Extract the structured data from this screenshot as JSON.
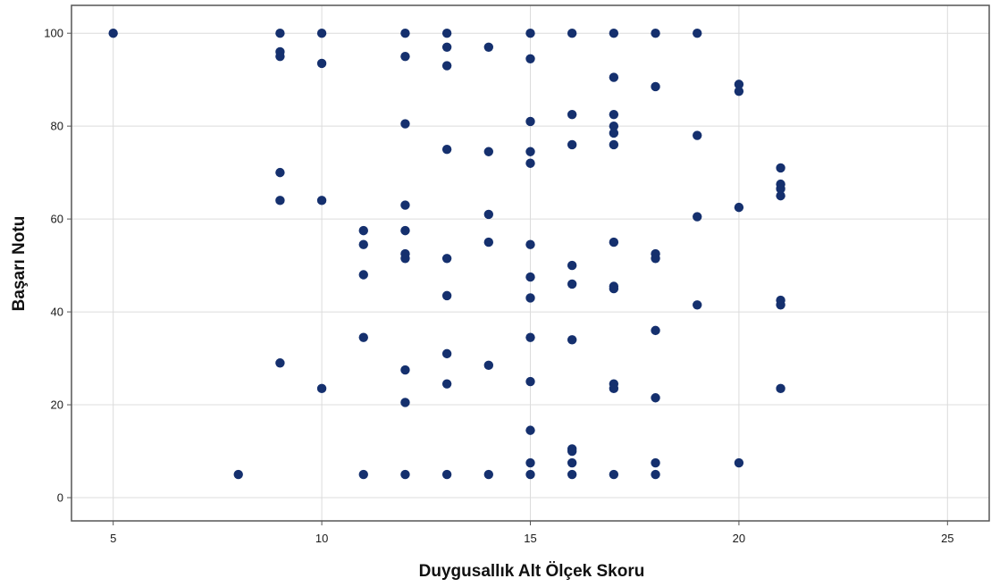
{
  "chart_data": {
    "type": "scatter",
    "xlabel": "Duygusallık Alt Ölçek Skoru",
    "ylabel": "Başarı Notu",
    "xlim": [
      4,
      26
    ],
    "ylim": [
      -5,
      106
    ],
    "xticks": [
      5,
      10,
      15,
      20,
      25
    ],
    "yticks": [
      0,
      20,
      40,
      60,
      80,
      100
    ],
    "grid": true,
    "point_color": "#15306e",
    "series": [
      {
        "points": [
          [
            5,
            100
          ],
          [
            8,
            5
          ],
          [
            9,
            100
          ],
          [
            9,
            96
          ],
          [
            9,
            95
          ],
          [
            9,
            70
          ],
          [
            9,
            64
          ],
          [
            9,
            29
          ],
          [
            10,
            100
          ],
          [
            10,
            93.5
          ],
          [
            10,
            64
          ],
          [
            10,
            23.5
          ],
          [
            11,
            57.5
          ],
          [
            11,
            54.5
          ],
          [
            11,
            48
          ],
          [
            11,
            34.5
          ],
          [
            11,
            5
          ],
          [
            12,
            100
          ],
          [
            12,
            95
          ],
          [
            12,
            80.5
          ],
          [
            12,
            63
          ],
          [
            12,
            57.5
          ],
          [
            12,
            52.5
          ],
          [
            12,
            51.5
          ],
          [
            12,
            27.5
          ],
          [
            12,
            20.5
          ],
          [
            12,
            5
          ],
          [
            13,
            100
          ],
          [
            13,
            97
          ],
          [
            13,
            93
          ],
          [
            13,
            75
          ],
          [
            13,
            51.5
          ],
          [
            13,
            43.5
          ],
          [
            13,
            31
          ],
          [
            13,
            24.5
          ],
          [
            13,
            5
          ],
          [
            14,
            97
          ],
          [
            14,
            74.5
          ],
          [
            14,
            61
          ],
          [
            14,
            55
          ],
          [
            14,
            28.5
          ],
          [
            14,
            5
          ],
          [
            15,
            100
          ],
          [
            15,
            94.5
          ],
          [
            15,
            81
          ],
          [
            15,
            74.5
          ],
          [
            15,
            72
          ],
          [
            15,
            54.5
          ],
          [
            15,
            47.5
          ],
          [
            15,
            43
          ],
          [
            15,
            34.5
          ],
          [
            15,
            25
          ],
          [
            15,
            14.5
          ],
          [
            15,
            7.5
          ],
          [
            15,
            5
          ],
          [
            16,
            100
          ],
          [
            16,
            82.5
          ],
          [
            16,
            76
          ],
          [
            16,
            50
          ],
          [
            16,
            46
          ],
          [
            16,
            34
          ],
          [
            16,
            10.5
          ],
          [
            16,
            10
          ],
          [
            16,
            7.5
          ],
          [
            16,
            5
          ],
          [
            17,
            100
          ],
          [
            17,
            90.5
          ],
          [
            17,
            82.5
          ],
          [
            17,
            80
          ],
          [
            17,
            78.5
          ],
          [
            17,
            76
          ],
          [
            17,
            55
          ],
          [
            17,
            45.5
          ],
          [
            17,
            45
          ],
          [
            17,
            24.5
          ],
          [
            17,
            23.5
          ],
          [
            17,
            5
          ],
          [
            18,
            100
          ],
          [
            18,
            88.5
          ],
          [
            18,
            52.5
          ],
          [
            18,
            51.5
          ],
          [
            18,
            36
          ],
          [
            18,
            21.5
          ],
          [
            18,
            7.5
          ],
          [
            18,
            5
          ],
          [
            19,
            100
          ],
          [
            19,
            78
          ],
          [
            19,
            60.5
          ],
          [
            19,
            41.5
          ],
          [
            20,
            89
          ],
          [
            20,
            87.5
          ],
          [
            20,
            62.5
          ],
          [
            20,
            7.5
          ],
          [
            21,
            71
          ],
          [
            21,
            67.5
          ],
          [
            21,
            66.5
          ],
          [
            21,
            65
          ],
          [
            21,
            42.5
          ],
          [
            21,
            41.5
          ],
          [
            21,
            23.5
          ]
        ]
      }
    ]
  }
}
